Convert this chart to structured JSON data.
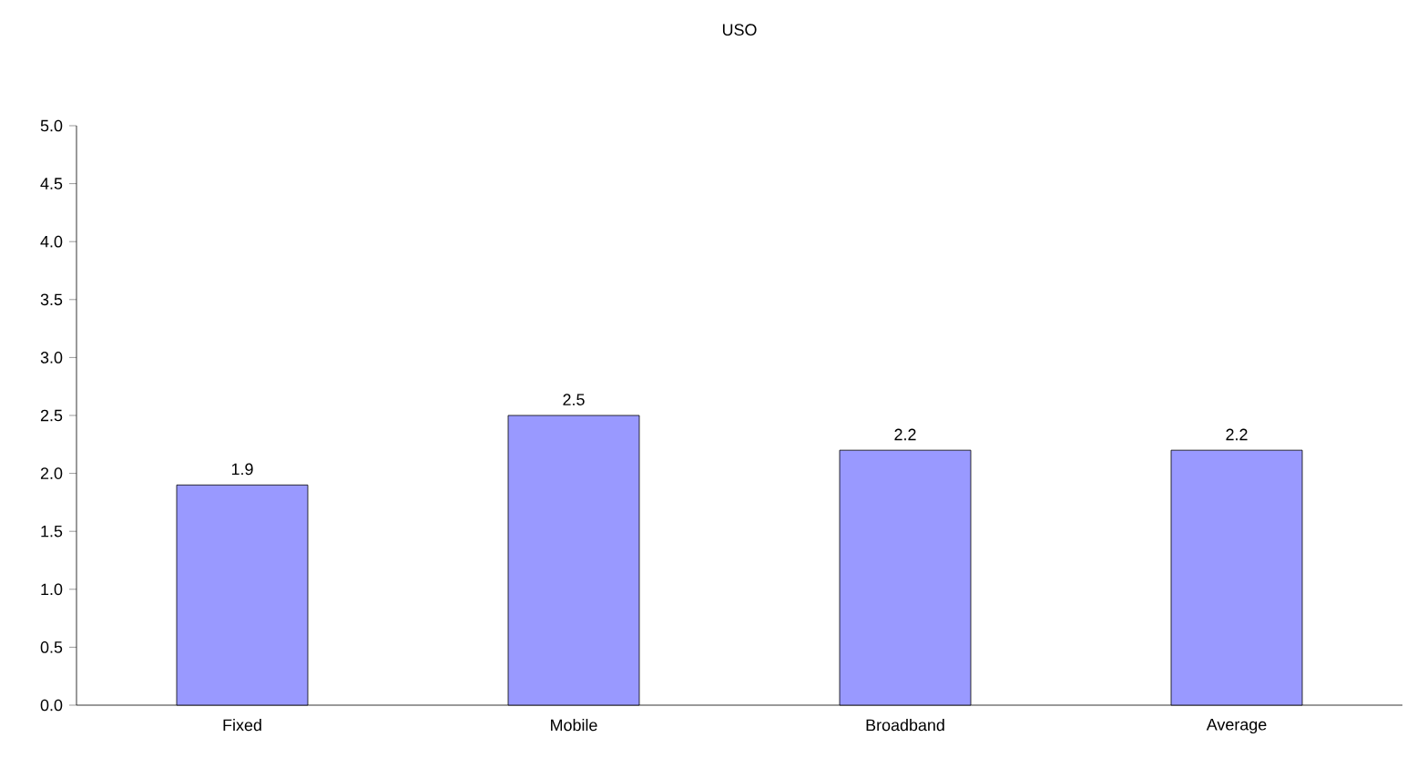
{
  "chart_data": {
    "type": "bar",
    "title": "USO",
    "categories": [
      "Fixed",
      "Mobile",
      "Broadband",
      "Average"
    ],
    "values": [
      1.9,
      2.5,
      2.2,
      2.2
    ],
    "color": "#9999ff",
    "ylim": [
      0,
      5
    ],
    "yticks": [
      {
        "value": 0,
        "label": "0.0"
      },
      {
        "value": 0.5,
        "label": "0.5"
      },
      {
        "value": 1,
        "label": "1.0"
      },
      {
        "value": 1.5,
        "label": "1.5"
      },
      {
        "value": 2,
        "label": "2.0"
      },
      {
        "value": 2.5,
        "label": "2.5"
      },
      {
        "value": 3,
        "label": "3.0"
      },
      {
        "value": 3.5,
        "label": "3.5"
      },
      {
        "value": 4,
        "label": "4.0"
      },
      {
        "value": 4.5,
        "label": "4.5"
      },
      {
        "value": 5,
        "label": "5.0"
      }
    ],
    "data_labels": true
  }
}
